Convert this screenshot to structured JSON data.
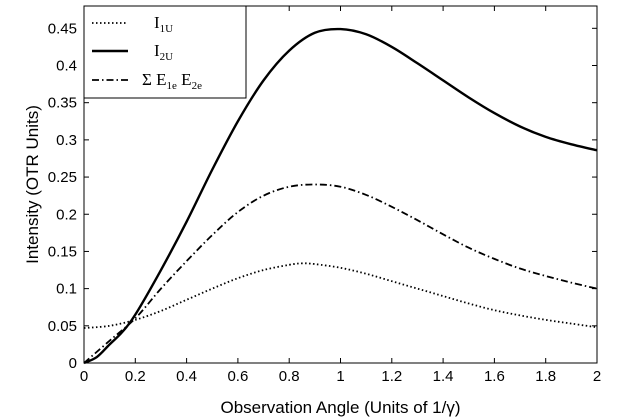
{
  "chart_data": {
    "type": "line",
    "xlabel": "Observation Angle (Units of 1/γ)",
    "ylabel": "Intensity (OTR Units)",
    "xlim": [
      0,
      2
    ],
    "ylim": [
      0,
      0.48
    ],
    "xticks": [
      "0",
      "0.2",
      "0.4",
      "0.6",
      "0.8",
      "1",
      "1.2",
      "1.4",
      "1.6",
      "1.8",
      "2"
    ],
    "yticks": [
      "0",
      "0.05",
      "0.1",
      "0.15",
      "0.2",
      "0.25",
      "0.3",
      "0.35",
      "0.4",
      "0.45"
    ],
    "grid": false,
    "legend_position": "top-left",
    "series": [
      {
        "legend": {
          "main": "I",
          "sub": "1U",
          "style": "dotted"
        },
        "x": [
          0,
          0.1,
          0.2,
          0.3,
          0.4,
          0.5,
          0.6,
          0.7,
          0.8,
          0.85,
          0.9,
          1.0,
          1.1,
          1.2,
          1.3,
          1.4,
          1.5,
          1.6,
          1.7,
          1.8,
          1.9,
          2.0
        ],
        "y": [
          0.047,
          0.05,
          0.058,
          0.07,
          0.085,
          0.1,
          0.114,
          0.125,
          0.132,
          0.134,
          0.133,
          0.128,
          0.12,
          0.11,
          0.1,
          0.09,
          0.08,
          0.071,
          0.064,
          0.058,
          0.053,
          0.048
        ]
      },
      {
        "legend": {
          "main": "I",
          "sub": "2U",
          "style": "solid"
        },
        "x": [
          0,
          0.05,
          0.1,
          0.15,
          0.2,
          0.3,
          0.4,
          0.5,
          0.6,
          0.7,
          0.8,
          0.9,
          1.0,
          1.1,
          1.2,
          1.3,
          1.4,
          1.5,
          1.6,
          1.7,
          1.8,
          1.9,
          2.0
        ],
        "y": [
          0.0,
          0.008,
          0.025,
          0.042,
          0.065,
          0.125,
          0.19,
          0.26,
          0.325,
          0.38,
          0.42,
          0.444,
          0.449,
          0.442,
          0.425,
          0.403,
          0.38,
          0.357,
          0.336,
          0.318,
          0.304,
          0.294,
          0.286
        ]
      },
      {
        "legend": {
          "main": "Σ E",
          "sub": "1e",
          "main2": " E",
          "sub2": "2e",
          "style": "dash-dot"
        },
        "x": [
          0,
          0.1,
          0.2,
          0.3,
          0.4,
          0.5,
          0.6,
          0.7,
          0.8,
          0.9,
          1.0,
          1.1,
          1.2,
          1.3,
          1.4,
          1.5,
          1.6,
          1.7,
          1.8,
          1.9,
          2.0
        ],
        "y": [
          0.0,
          0.03,
          0.06,
          0.1,
          0.137,
          0.172,
          0.203,
          0.225,
          0.237,
          0.24,
          0.237,
          0.226,
          0.21,
          0.192,
          0.173,
          0.155,
          0.14,
          0.127,
          0.117,
          0.108,
          0.1
        ]
      }
    ]
  }
}
